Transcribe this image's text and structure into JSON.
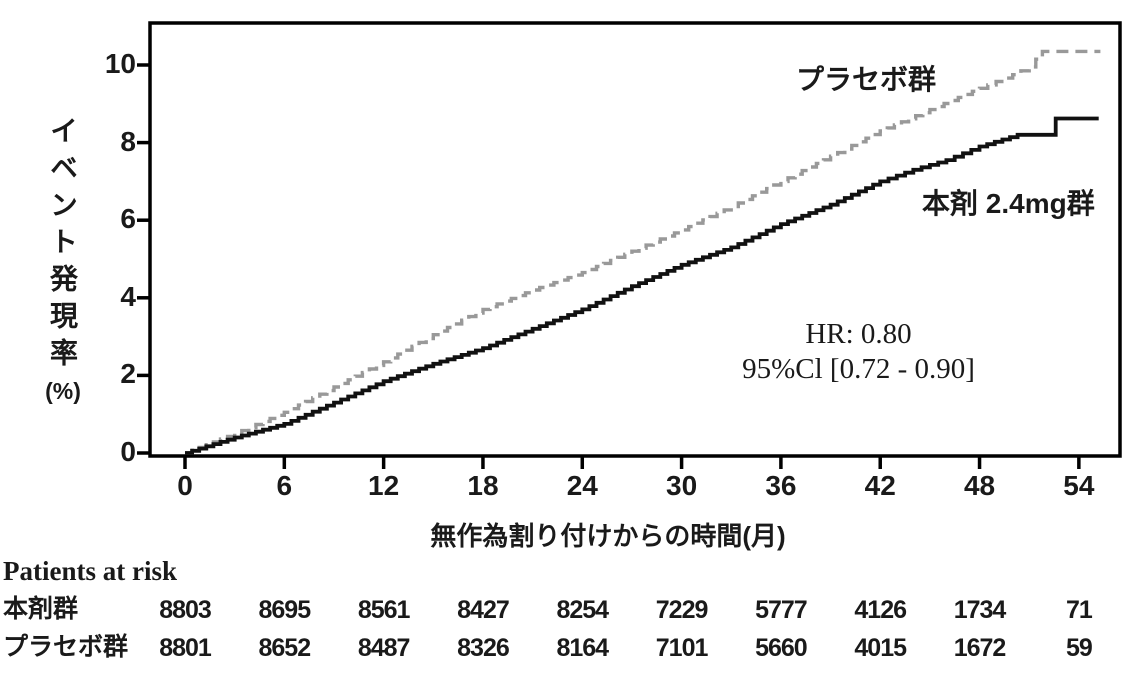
{
  "chart": {
    "y_axis": {
      "title_vertical": "イベント発現率",
      "unit": "(%)",
      "ticks": [
        "0",
        "2",
        "4",
        "6",
        "8",
        "10"
      ]
    },
    "x_axis": {
      "title": "無作為割り付けからの時間(月)",
      "ticks": [
        "0",
        "6",
        "12",
        "18",
        "24",
        "30",
        "36",
        "42",
        "48",
        "54"
      ]
    },
    "series_labels": {
      "placebo": "プラセボ群",
      "treatment": "本剤 2.4mg群"
    },
    "annotation": {
      "line1": "HR: 0.80",
      "line2": "95%Cl [0.72 - 0.90]"
    }
  },
  "chart_data": {
    "type": "line",
    "subtype": "kaplan-meier-cumulative-incidence",
    "title": "",
    "xlabel": "無作為割り付けからの時間(月)",
    "ylabel": "イベント発現率(%)",
    "xlim": [
      -2.1,
      56.7
    ],
    "ylim": [
      0,
      11.1
    ],
    "x_ticks": [
      0,
      6,
      12,
      18,
      24,
      30,
      36,
      42,
      48,
      54
    ],
    "y_ticks": [
      0,
      2,
      4,
      6,
      8,
      10
    ],
    "grid": false,
    "legend_position": "inline-labels",
    "annotations": [
      "HR: 0.80",
      "95%Cl [0.72 - 0.90]"
    ],
    "series": [
      {
        "name": "プラセボ群",
        "style": "dashed",
        "color": "#999999",
        "points": [
          [
            0,
            0
          ],
          [
            3,
            0.5
          ],
          [
            6,
            1.05
          ],
          [
            9,
            1.7
          ],
          [
            12,
            2.35
          ],
          [
            15,
            3.05
          ],
          [
            18,
            3.7
          ],
          [
            21,
            4.2
          ],
          [
            24,
            4.65
          ],
          [
            27,
            5.2
          ],
          [
            30,
            5.75
          ],
          [
            33,
            6.35
          ],
          [
            36,
            7.0
          ],
          [
            39,
            7.65
          ],
          [
            42,
            8.3
          ],
          [
            45,
            8.85
          ],
          [
            48,
            9.4
          ],
          [
            50,
            9.75
          ],
          [
            51,
            9.95
          ],
          [
            51.8,
            10.35
          ],
          [
            55.3,
            10.35
          ]
        ]
      },
      {
        "name": "本剤 2.4mg群",
        "style": "solid",
        "color": "#111111",
        "points": [
          [
            0,
            0
          ],
          [
            3,
            0.4
          ],
          [
            6,
            0.75
          ],
          [
            9,
            1.3
          ],
          [
            12,
            1.85
          ],
          [
            15,
            2.3
          ],
          [
            18,
            2.7
          ],
          [
            21,
            3.2
          ],
          [
            24,
            3.7
          ],
          [
            27,
            4.3
          ],
          [
            30,
            4.85
          ],
          [
            33,
            5.3
          ],
          [
            36,
            5.9
          ],
          [
            39,
            6.4
          ],
          [
            42,
            7.0
          ],
          [
            44,
            7.3
          ],
          [
            46,
            7.55
          ],
          [
            48,
            7.9
          ],
          [
            50.3,
            8.2
          ],
          [
            52.5,
            8.2
          ],
          [
            52.6,
            8.62
          ],
          [
            55.2,
            8.62
          ]
        ]
      }
    ]
  },
  "risk_table": {
    "header": "Patients at risk",
    "rows": [
      {
        "label": "本剤群",
        "values": [
          "8803",
          "8695",
          "8561",
          "8427",
          "8254",
          "7229",
          "5777",
          "4126",
          "1734",
          "71"
        ]
      },
      {
        "label": "プラセボ群",
        "values": [
          "8801",
          "8652",
          "8487",
          "8326",
          "8164",
          "7101",
          "5660",
          "4015",
          "1672",
          "59"
        ]
      }
    ]
  },
  "colors": {
    "frame": "#000000",
    "placebo_line": "#999999",
    "treatment_line": "#111111",
    "text": "#1a1a1a"
  }
}
